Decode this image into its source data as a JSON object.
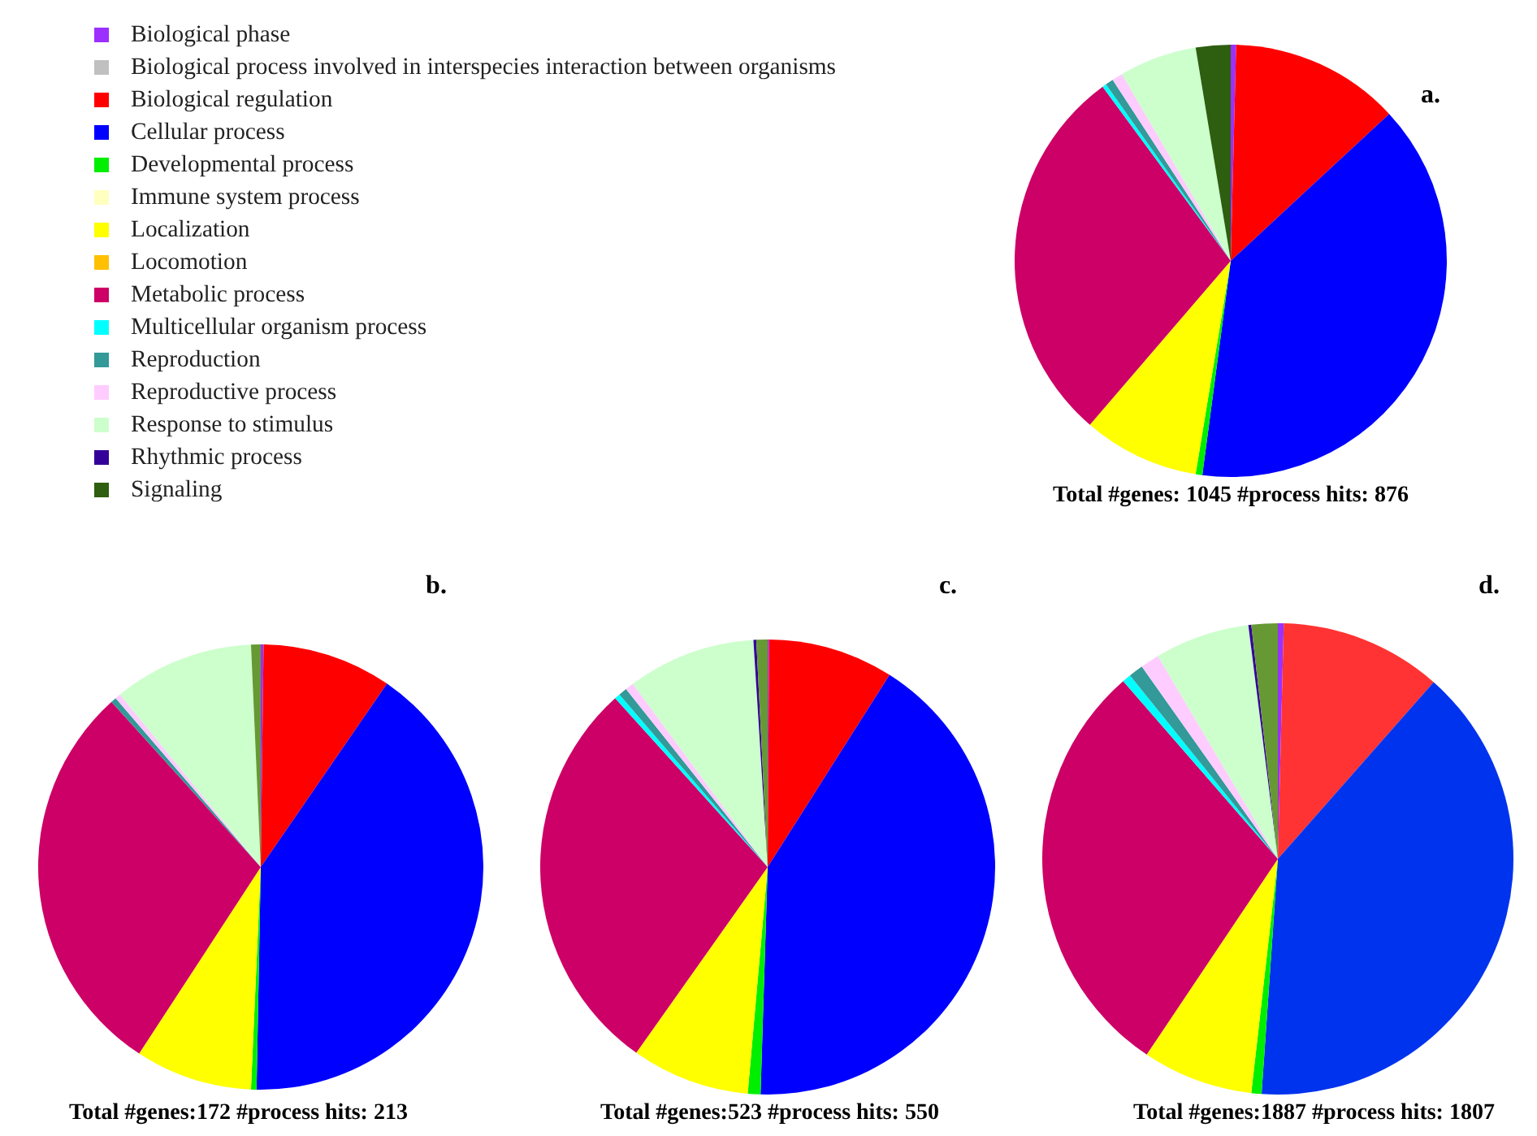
{
  "chart_data": [
    {
      "type": "pie",
      "title": "a.",
      "legend": "left",
      "annotations": [
        "Total #genes: 1045 #process hits: 876"
      ],
      "categories": [
        "Biological phase",
        "Biological process involved in interspecies interaction between organisms",
        "Biological regulation",
        "Cellular process",
        "Developmental process",
        "Immune system process",
        "Localization",
        "Locomotion",
        "Metabolic process",
        "Multicellular organism process",
        "Reproduction",
        "Reproductive process",
        "Response to stimulus",
        "Rhythmic process",
        "Signaling"
      ],
      "values": [
        0.4,
        0,
        12.7,
        39.0,
        0.5,
        0,
        8.7,
        0,
        28.6,
        0.3,
        0.6,
        0.8,
        5.8,
        0,
        2.6
      ],
      "colors": [
        "#9b30ff",
        "#c0c0c0",
        "#ff0000",
        "#0000ff",
        "#00ee00",
        "#ffffc0",
        "#ffff00",
        "#ffc000",
        "#cc0066",
        "#00ffff",
        "#339999",
        "#ffccff",
        "#ccffcc",
        "#330099",
        "#2e5e10"
      ]
    },
    {
      "type": "pie",
      "title": "b.",
      "annotations": [
        "Total #genes:172  #process hits: 213"
      ],
      "categories": [
        null,
        null,
        null,
        null,
        null,
        null,
        null,
        null,
        null,
        null
      ],
      "values": [
        0.2,
        9.4,
        40.7,
        0.4,
        8.5,
        29.1,
        0.4,
        0.4,
        10.2,
        0.7
      ],
      "colors": [
        "#9b30ff",
        "#ff0000",
        "#0000ff",
        "#00ee00",
        "#ffff00",
        "#cc0066",
        "#339999",
        "#ffccff",
        "#ccffcc",
        "#669933"
      ]
    },
    {
      "type": "pie",
      "title": "c.",
      "annotations": [
        "Total #genes:523  #process hits: 550"
      ],
      "categories": [
        null,
        null,
        null,
        null,
        null,
        null,
        null,
        null,
        null,
        null,
        null,
        null
      ],
      "values": [
        0.1,
        8.9,
        41.5,
        0.9,
        8.4,
        28.5,
        0.4,
        0.6,
        0.6,
        9.1,
        0.2,
        0.8
      ],
      "colors": [
        "#9b30ff",
        "#ff0000",
        "#0000ff",
        "#00ee00",
        "#ffff00",
        "#cc0066",
        "#00ffff",
        "#339999",
        "#ffccff",
        "#ccffcc",
        "#330099",
        "#669933"
      ]
    },
    {
      "type": "pie",
      "title": "d.",
      "annotations": [
        "Total #genes:1887  #process hits: 1807"
      ],
      "categories": [
        null,
        null,
        null,
        null,
        null,
        null,
        null,
        null,
        null,
        null,
        null,
        null
      ],
      "values": [
        0.4,
        11.1,
        39.6,
        0.7,
        7.6,
        29.2,
        0.6,
        1.0,
        1.3,
        6.5,
        0.2,
        1.8
      ],
      "colors": [
        "#9b30ff",
        "#ff3333",
        "#0033ee",
        "#00ee00",
        "#ffff00",
        "#cc0066",
        "#00ffff",
        "#339999",
        "#ffccff",
        "#ccffcc",
        "#330099",
        "#669933"
      ]
    }
  ]
}
